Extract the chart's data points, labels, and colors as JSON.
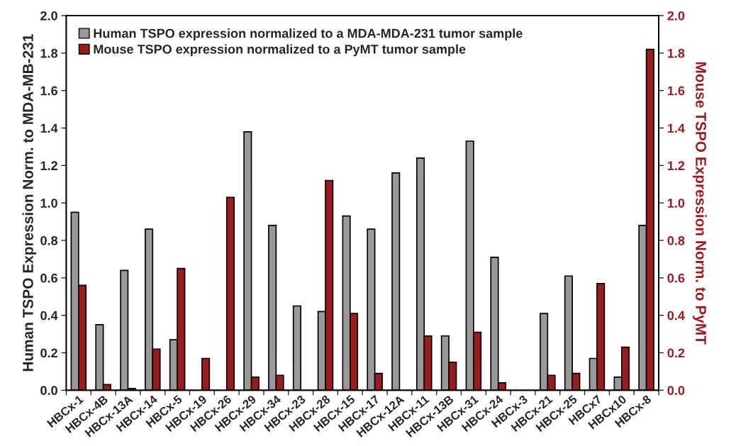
{
  "chart_data": {
    "type": "bar",
    "xlabel": null,
    "ylabel": "Human TSPO Expression Norm. to MDA-MB-231",
    "y2label": "Mouse TSPO Expression Norm. to PyMT",
    "categories": [
      "HBCx-1",
      "HBCx-4B",
      "HBCx-13A",
      "HBCx-14",
      "HBCx-5",
      "HBCx-19",
      "HBCx-26",
      "HBCx-29",
      "HBCx-34",
      "HBCx-23",
      "HBCx-28",
      "HBCx-15",
      "HBCx-17",
      "HBCx-12A",
      "HBCx-11",
      "HBCx-13B",
      "HBCx-31",
      "HBCx-24",
      "HBCx-3",
      "HBCx-21",
      "HBCx-25",
      "HBCx7",
      "HBCx10",
      "HBCx-8"
    ],
    "series": [
      {
        "name": "Human TSPO expression normalized to a MDA-MDA-231 tumor sample",
        "color": "#999999",
        "values": [
          0.95,
          0.35,
          0.64,
          0.86,
          0.27,
          null,
          null,
          1.38,
          0.88,
          0.45,
          0.42,
          0.93,
          0.86,
          1.16,
          1.24,
          0.29,
          1.33,
          0.71,
          null,
          0.41,
          0.61,
          0.17,
          0.07,
          0.88
        ]
      },
      {
        "name": "Mouse TSPO expression normalized to a PyMT tumor sample",
        "color": "#9b1b1f",
        "axis": "y2",
        "values": [
          0.56,
          0.03,
          0.01,
          0.22,
          0.65,
          0.17,
          1.03,
          0.07,
          0.08,
          null,
          1.12,
          0.41,
          0.09,
          null,
          0.29,
          0.15,
          0.31,
          0.04,
          null,
          0.08,
          0.09,
          0.57,
          0.23,
          1.82
        ]
      }
    ],
    "ylim": [
      0,
      2
    ],
    "yticks": [
      {
        "value": 0,
        "label": "0.0"
      },
      {
        "value": 0.2,
        "label": "0.2"
      },
      {
        "value": 0.4,
        "label": "0.4"
      },
      {
        "value": 0.6,
        "label": "0.6"
      },
      {
        "value": 0.8,
        "label": "0.8"
      },
      {
        "value": 1,
        "label": "1.0"
      },
      {
        "value": 1.2,
        "label": "1.2"
      },
      {
        "value": 1.4,
        "label": "1.4"
      },
      {
        "value": 1.6,
        "label": "1.6"
      },
      {
        "value": 1.8,
        "label": "1.8"
      },
      {
        "value": 2,
        "label": "2.0"
      }
    ],
    "y2lim": [
      0,
      2
    ],
    "y2ticks": [
      {
        "value": 0,
        "label": "0.0"
      },
      {
        "value": 0.2,
        "label": "0.2"
      },
      {
        "value": 0.4,
        "label": "0.4"
      },
      {
        "value": 0.6,
        "label": "0.6"
      },
      {
        "value": 0.8,
        "label": "0.8"
      },
      {
        "value": 1,
        "label": "1.0"
      },
      {
        "value": 1.2,
        "label": "1.2"
      },
      {
        "value": 1.4,
        "label": "1.4"
      },
      {
        "value": 1.6,
        "label": "1.6"
      },
      {
        "value": 1.8,
        "label": "1.8"
      },
      {
        "value": 2,
        "label": "2.0"
      }
    ],
    "grid": false,
    "legend": "top left"
  }
}
